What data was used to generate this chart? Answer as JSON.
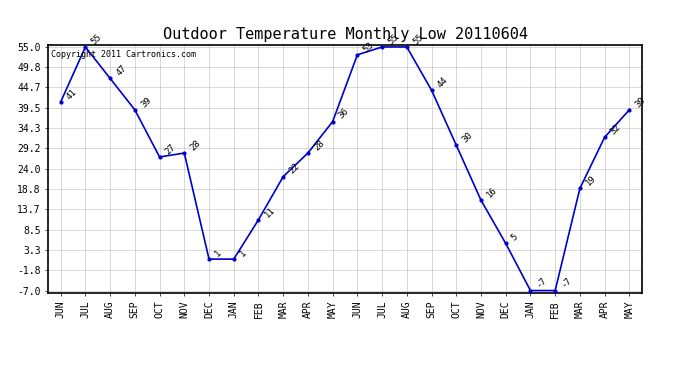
{
  "title": "Outdoor Temperature Monthly Low 20110604",
  "copyright": "Copyright 2011 Cartronics.com",
  "months": [
    "JUN",
    "JUL",
    "AUG",
    "SEP",
    "OCT",
    "NOV",
    "DEC",
    "JAN",
    "FEB",
    "MAR",
    "APR",
    "MAY",
    "JUN",
    "JUL",
    "AUG",
    "SEP",
    "OCT",
    "NOV",
    "DEC",
    "JAN",
    "FEB",
    "MAR",
    "APR",
    "MAY"
  ],
  "values": [
    41,
    55,
    47,
    39,
    27,
    28,
    1,
    1,
    11,
    22,
    28,
    36,
    53,
    55,
    55,
    44,
    30,
    16,
    5,
    -7,
    -7,
    19,
    32,
    39
  ],
  "line_color": "#0000cc",
  "marker_color": "#0000cc",
  "background_color": "#ffffff",
  "grid_color": "#bbbbbb",
  "ylim": [
    -7.0,
    55.0
  ],
  "yticks": [
    -7.0,
    -1.8,
    3.3,
    8.5,
    13.7,
    18.8,
    24.0,
    29.2,
    34.3,
    39.5,
    44.7,
    49.8,
    55.0
  ],
  "title_fontsize": 11,
  "copyright_fontsize": 6,
  "tick_fontsize": 7
}
